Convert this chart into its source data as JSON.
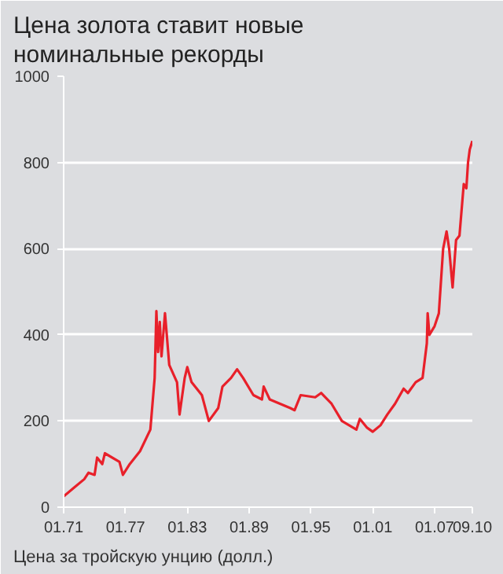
{
  "chart_data": {
    "type": "line",
    "title": "Цена золота ставит новые номинальные рекорды",
    "xlabel": "Цена за тройскую унцию (долл.)",
    "color": "#e8202a",
    "grid": "y",
    "marker": "none",
    "line_style": "solid",
    "x": [
      "1971-01",
      "1972-01",
      "1973-01",
      "1973-06",
      "1974-01",
      "1974-04",
      "1974-10",
      "1975-01",
      "1976-06",
      "1976-10",
      "1977-06",
      "1978-06",
      "1979-06",
      "1979-11",
      "1980-01",
      "1980-03",
      "1980-05",
      "1980-07",
      "1980-11",
      "1981-04",
      "1982-01",
      "1982-04",
      "1982-10",
      "1983-01",
      "1983-06",
      "1984-06",
      "1985-02",
      "1986-01",
      "1986-06",
      "1987-04",
      "1987-11",
      "1988-06",
      "1989-06",
      "1990-04",
      "1990-06",
      "1991-01",
      "1993-01",
      "1993-06",
      "1994-01",
      "1995-06",
      "1996-01",
      "1997-01",
      "1998-01",
      "1999-06",
      "1999-10",
      "2000-06",
      "2001-01",
      "2001-10",
      "2002-06",
      "2003-03",
      "2004-01",
      "2004-06",
      "2005-03",
      "2005-11",
      "2006-04",
      "2006-05",
      "2006-07",
      "2007-01",
      "2007-06",
      "2007-11",
      "2008-03",
      "2008-06",
      "2008-10",
      "2009-02",
      "2009-06",
      "2009-11",
      "2010-02",
      "2010-04",
      "2010-06",
      "2010-09"
    ],
    "values": [
      25,
      45,
      65,
      80,
      75,
      115,
      100,
      125,
      105,
      75,
      100,
      130,
      180,
      300,
      455,
      360,
      430,
      350,
      450,
      330,
      290,
      215,
      300,
      325,
      290,
      260,
      200,
      230,
      280,
      300,
      320,
      300,
      260,
      250,
      280,
      250,
      230,
      225,
      260,
      255,
      265,
      240,
      200,
      180,
      205,
      185,
      175,
      190,
      215,
      240,
      275,
      265,
      290,
      300,
      380,
      450,
      400,
      420,
      450,
      600,
      640,
      600,
      510,
      620,
      630,
      750,
      740,
      800,
      830,
      850
    ],
    "xlim": [
      "1971-01",
      "2010-09"
    ],
    "xticks": [
      {
        "value": "1971-01",
        "label": "01.71"
      },
      {
        "value": "1977-01",
        "label": "01.77"
      },
      {
        "value": "1983-01",
        "label": "01.83"
      },
      {
        "value": "1989-01",
        "label": "01.89"
      },
      {
        "value": "1995-01",
        "label": "01.95"
      },
      {
        "value": "2001-01",
        "label": "01.01"
      },
      {
        "value": "2007-01",
        "label": "01.07"
      },
      {
        "value": "2010-09",
        "label": "09.10"
      }
    ],
    "ylim": [
      0,
      1000
    ],
    "yticks": [
      0,
      200,
      400,
      600,
      800,
      1000
    ]
  }
}
